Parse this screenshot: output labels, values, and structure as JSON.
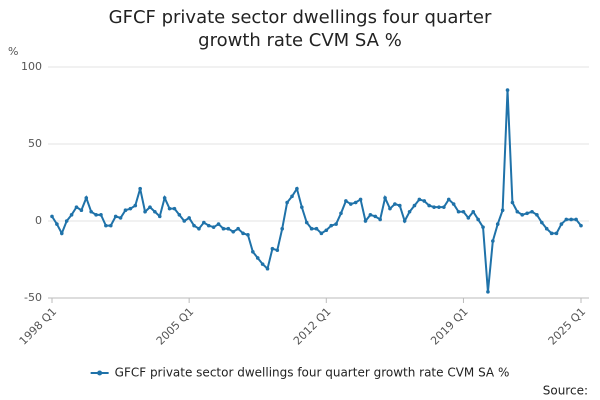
{
  "chart_data": {
    "type": "line",
    "title": "GFCF private sector dwellings four quarter growth rate CVM SA %",
    "y_label": "%",
    "source": "Source:",
    "categories": [
      "1998 Q1",
      null,
      null,
      null,
      null,
      null,
      null,
      null,
      null,
      null,
      null,
      null,
      null,
      null,
      null,
      null,
      null,
      null,
      null,
      null,
      null,
      null,
      null,
      null,
      null,
      null,
      null,
      null,
      "2005 Q1",
      null,
      null,
      null,
      null,
      null,
      null,
      null,
      null,
      null,
      null,
      null,
      null,
      null,
      null,
      null,
      null,
      null,
      null,
      null,
      null,
      null,
      null,
      null,
      null,
      null,
      null,
      null,
      "2012 Q1",
      null,
      null,
      null,
      null,
      null,
      null,
      null,
      null,
      null,
      null,
      null,
      null,
      null,
      null,
      null,
      null,
      null,
      null,
      null,
      null,
      null,
      null,
      null,
      null,
      null,
      null,
      null,
      "2019 Q1",
      null,
      null,
      null,
      null,
      null,
      null,
      null,
      null,
      null,
      null,
      null,
      null,
      null,
      null,
      null,
      null,
      null,
      null,
      null,
      null,
      null,
      null,
      null,
      "2025 Q1"
    ],
    "series": [
      {
        "name": "GFCF private sector dwellings four quarter growth rate CVM SA %",
        "color": "#1f72a9",
        "values": [
          3,
          -2,
          -8,
          0,
          4,
          9,
          7,
          15,
          6,
          4,
          4,
          -3,
          -3,
          3,
          2,
          7,
          8,
          10,
          21,
          6,
          9,
          6,
          3,
          15,
          8,
          8,
          4,
          0,
          2,
          -3,
          -5,
          -1,
          -3,
          -4,
          -2,
          -5,
          -5,
          -7,
          -5,
          -8,
          -9,
          -20,
          -24,
          -28,
          -31,
          -18,
          -19,
          -5,
          12,
          16,
          21,
          9,
          -1,
          -5,
          -5,
          -8,
          -6,
          -3,
          -2,
          5,
          13,
          11,
          12,
          14,
          0,
          4,
          3,
          1,
          15,
          8,
          11,
          10,
          0,
          6,
          10,
          14,
          13,
          10,
          9,
          9,
          9,
          14,
          11,
          6,
          6,
          2,
          6,
          1,
          -4,
          -46,
          -13,
          -2,
          7,
          85,
          12,
          6,
          4,
          5,
          6,
          4,
          -1,
          -5,
          -8,
          -8,
          -2,
          1,
          1,
          1,
          -3
        ]
      }
    ],
    "ylim": [
      -50,
      100
    ],
    "yticks": [
      -50,
      0,
      50,
      100
    ],
    "grid": true,
    "legend": "bottom"
  }
}
